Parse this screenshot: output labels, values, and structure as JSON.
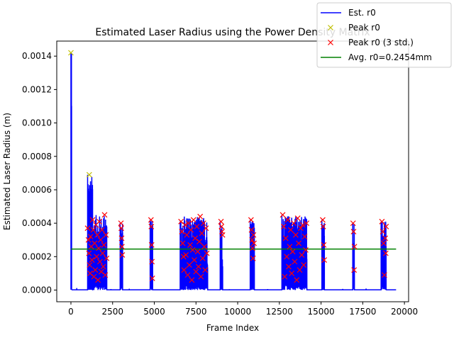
{
  "chart_data": {
    "type": "line",
    "title": "Estimated Laser Radius using the Power Density Matrix",
    "xlabel": "Frame Index",
    "ylabel": "Estimated Laser Radius (m)",
    "xlim": [
      -850,
      20250
    ],
    "ylim": [
      -7e-05,
      0.00149
    ],
    "xticks": [
      0,
      2500,
      5000,
      7500,
      10000,
      12500,
      15000,
      17500,
      20000
    ],
    "xtick_labels": [
      "0",
      "2500",
      "5000",
      "7500",
      "10000",
      "12500",
      "15000",
      "17500",
      "20000"
    ],
    "yticks": [
      0.0,
      0.0002,
      0.0004,
      0.0006,
      0.0008,
      0.001,
      0.0012,
      0.0014
    ],
    "ytick_labels": [
      "0.0000",
      "0.0002",
      "0.0004",
      "0.0006",
      "0.0008",
      "0.0010",
      "0.0012",
      "0.0014"
    ],
    "grid": false,
    "legend_position": "top-right",
    "colors": {
      "est": "#0000ff",
      "peak": "#bfbf00",
      "peak3std": "#ff0000",
      "avg": "#008000"
    },
    "series": [
      {
        "name": "Est. r0",
        "kind": "line",
        "baseline": 1.5e-06,
        "spike_clusters": [
          {
            "x_start": 0,
            "x_end": 40,
            "max": 0.00142
          },
          {
            "x_start": 1000,
            "x_end": 1300,
            "max": 0.00069
          },
          {
            "x_start": 1300,
            "x_end": 2150,
            "max": 0.00045
          },
          {
            "x_start": 2950,
            "x_end": 3100,
            "max": 0.0004
          },
          {
            "x_start": 4750,
            "x_end": 4900,
            "max": 0.00042
          },
          {
            "x_start": 6550,
            "x_end": 6800,
            "max": 0.00041
          },
          {
            "x_start": 6800,
            "x_end": 8200,
            "max": 0.00044
          },
          {
            "x_start": 8950,
            "x_end": 9100,
            "max": 0.00041
          },
          {
            "x_start": 10750,
            "x_end": 11000,
            "max": 0.00042
          },
          {
            "x_start": 12650,
            "x_end": 14150,
            "max": 0.00045
          },
          {
            "x_start": 15050,
            "x_end": 15200,
            "max": 0.00042
          },
          {
            "x_start": 16900,
            "x_end": 17000,
            "max": 0.0004
          },
          {
            "x_start": 18600,
            "x_end": 18900,
            "max": 0.00041
          }
        ]
      },
      {
        "name": "Peak r0",
        "kind": "marker-x",
        "points": [
          [
            0,
            0.00142
          ],
          [
            1100,
            0.00069
          ]
        ]
      },
      {
        "name": "Peak r0 (3 std.)",
        "kind": "marker-x",
        "points": [
          [
            1000,
            0.00037
          ],
          [
            1050,
            0.0003
          ],
          [
            1080,
            0.00022
          ],
          [
            1120,
            0.00015
          ],
          [
            1150,
            0.0001
          ],
          [
            1180,
            0.00032
          ],
          [
            1220,
            0.00026
          ],
          [
            1260,
            0.00018
          ],
          [
            1300,
            0.00042
          ],
          [
            1340,
            0.00036
          ],
          [
            1380,
            8e-05
          ],
          [
            1420,
            0.00028
          ],
          [
            1460,
            0.00012
          ],
          [
            1500,
            0.00039
          ],
          [
            1540,
            0.0002
          ],
          [
            1580,
            0.00033
          ],
          [
            1620,
            6e-05
          ],
          [
            1660,
            0.00025
          ],
          [
            1700,
            0.00041
          ],
          [
            1740,
            0.00017
          ],
          [
            1780,
            0.0003
          ],
          [
            1820,
            0.00011
          ],
          [
            1860,
            0.00036
          ],
          [
            1900,
            0.00022
          ],
          [
            1940,
            0.00014
          ],
          [
            1980,
            0.00027
          ],
          [
            2020,
            0.00045
          ],
          [
            2060,
            9e-05
          ],
          [
            2100,
            0.00033
          ],
          [
            2140,
            0.00019
          ],
          [
            3000,
            0.0004
          ],
          [
            3020,
            0.00037
          ],
          [
            3040,
            0.00031
          ],
          [
            3060,
            0.00026
          ],
          [
            3080,
            0.00021
          ],
          [
            4800,
            0.00042
          ],
          [
            4820,
            0.00038
          ],
          [
            4840,
            0.00027
          ],
          [
            4860,
            0.00017
          ],
          [
            4880,
            7e-05
          ],
          [
            6600,
            0.00041
          ],
          [
            6650,
            0.00035
          ],
          [
            6700,
            0.00028
          ],
          [
            6750,
            0.0002
          ],
          [
            6780,
            0.00012
          ],
          [
            6850,
            0.00039
          ],
          [
            6900,
            0.00021
          ],
          [
            6950,
            0.00033
          ],
          [
            7000,
            9e-05
          ],
          [
            7050,
            0.0004
          ],
          [
            7100,
            0.00015
          ],
          [
            7150,
            0.00027
          ],
          [
            7200,
            0.00036
          ],
          [
            7250,
            6e-05
          ],
          [
            7300,
            0.00024
          ],
          [
            7350,
            0.00042
          ],
          [
            7400,
            0.00018
          ],
          [
            7450,
            0.00031
          ],
          [
            7500,
            0.00011
          ],
          [
            7550,
            0.00038
          ],
          [
            7600,
            0.00023
          ],
          [
            7650,
            0.00014
          ],
          [
            7700,
            0.00029
          ],
          [
            7750,
            0.00044
          ],
          [
            7800,
            8e-05
          ],
          [
            7850,
            0.00034
          ],
          [
            7900,
            0.00019
          ],
          [
            7950,
            0.0004
          ],
          [
            8000,
            0.00026
          ],
          [
            8050,
            0.00012
          ],
          [
            8100,
            0.00037
          ],
          [
            8150,
            0.00022
          ],
          [
            9000,
            0.00041
          ],
          [
            9030,
            0.00038
          ],
          [
            9060,
            0.00035
          ],
          [
            9090,
            0.00033
          ],
          [
            10800,
            0.00042
          ],
          [
            10830,
            0.00036
          ],
          [
            10860,
            0.0003
          ],
          [
            10890,
            0.00025
          ],
          [
            10920,
            0.00019
          ],
          [
            10950,
            0.00033
          ],
          [
            10980,
            0.00028
          ],
          [
            12700,
            0.00045
          ],
          [
            12760,
            0.00038
          ],
          [
            12820,
            8e-05
          ],
          [
            12880,
            0.00031
          ],
          [
            12940,
            0.0002
          ],
          [
            13000,
            0.00042
          ],
          [
            13060,
            0.00014
          ],
          [
            13120,
            0.00026
          ],
          [
            13180,
            0.00036
          ],
          [
            13240,
            0.0001
          ],
          [
            13300,
            0.00023
          ],
          [
            13360,
            0.0004
          ],
          [
            13420,
            0.00017
          ],
          [
            13480,
            0.00033
          ],
          [
            13540,
            6e-05
          ],
          [
            13600,
            0.00043
          ],
          [
            13660,
            0.00028
          ],
          [
            13720,
            0.00012
          ],
          [
            13780,
            0.00037
          ],
          [
            13840,
            0.00021
          ],
          [
            13900,
            0.00039
          ],
          [
            13960,
            0.00015
          ],
          [
            14020,
            0.00032
          ],
          [
            14080,
            0.00024
          ],
          [
            14130,
            0.0004
          ],
          [
            15100,
            0.00042
          ],
          [
            15130,
            0.00038
          ],
          [
            15160,
            0.00027
          ],
          [
            15190,
            0.00018
          ],
          [
            16920,
            0.0004
          ],
          [
            16950,
            0.00035
          ],
          [
            16980,
            0.00012
          ],
          [
            17000,
            0.00026
          ],
          [
            18650,
            0.00041
          ],
          [
            18700,
            0.00035
          ],
          [
            18750,
            0.00028
          ],
          [
            18800,
            9e-05
          ],
          [
            18850,
            0.00031
          ],
          [
            18880,
            0.00022
          ],
          [
            18900,
            0.00038
          ]
        ]
      },
      {
        "name": "Avg. r0=0.2454mm",
        "kind": "hline",
        "y": 0.0002454,
        "x_range": [
          0,
          19500
        ]
      }
    ]
  }
}
